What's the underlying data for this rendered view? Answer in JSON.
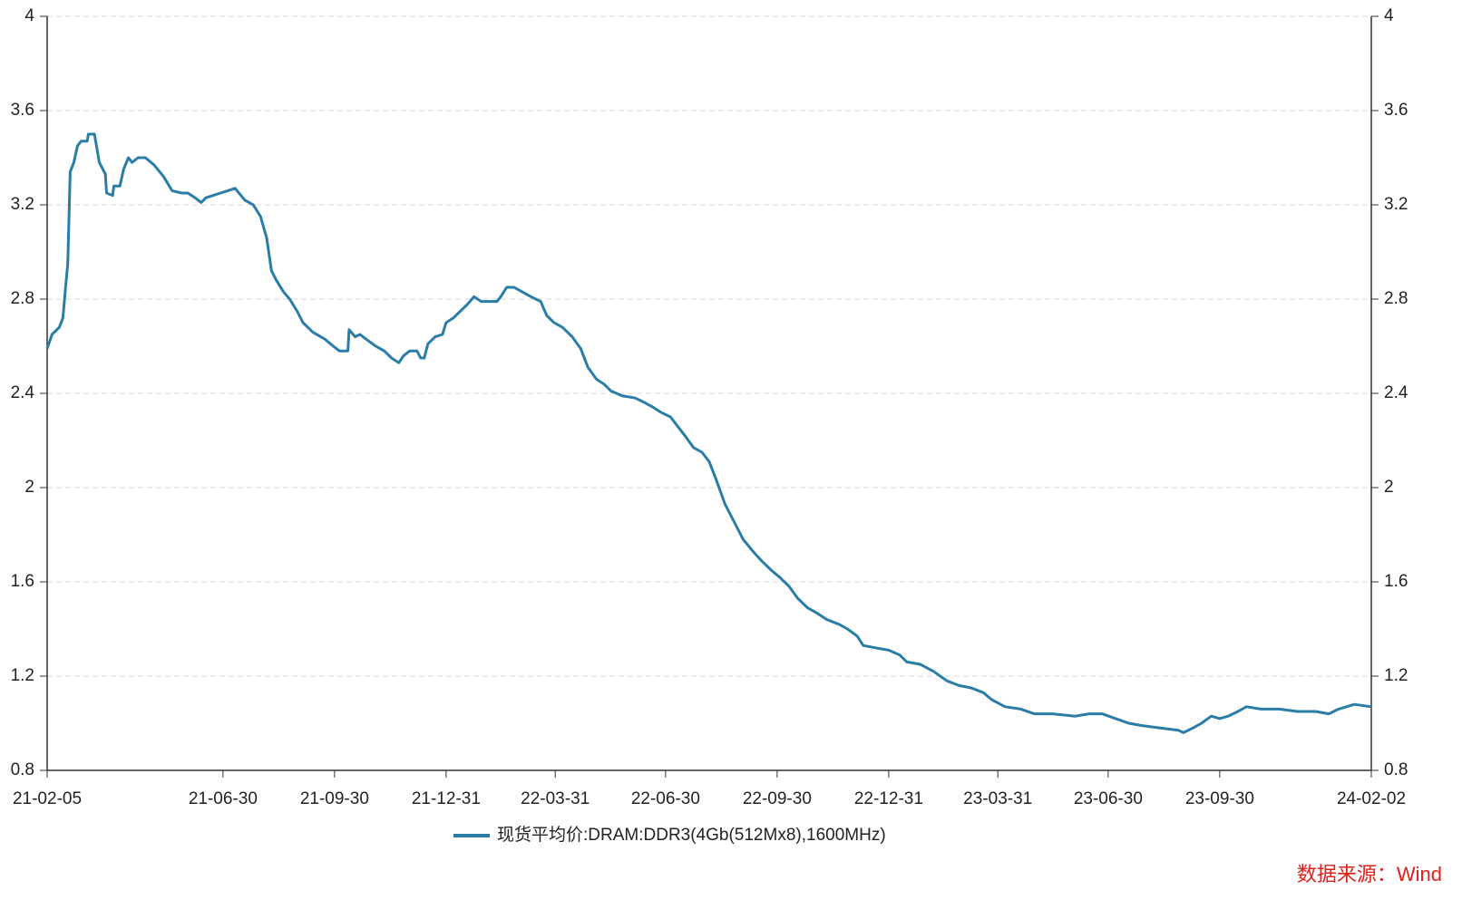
{
  "chart_data": {
    "type": "line",
    "x": [
      "21-02-05",
      "21-02-09",
      "21-02-15",
      "21-02-18",
      "21-02-20",
      "21-02-22",
      "21-02-24",
      "21-02-27",
      "21-03-02",
      "21-03-05",
      "21-03-10",
      "21-03-11",
      "21-03-16",
      "21-03-20",
      "21-03-25",
      "21-03-26",
      "21-03-31",
      "21-04-01",
      "21-04-06",
      "21-04-09",
      "21-04-13",
      "21-04-16",
      "21-04-21",
      "21-04-27",
      "21-05-04",
      "21-05-12",
      "21-05-19",
      "21-05-27",
      "21-06-01",
      "21-06-07",
      "21-06-12",
      "21-06-16",
      "21-06-22",
      "21-06-28",
      "21-07-04",
      "21-07-10",
      "21-07-18",
      "21-07-25",
      "21-07-31",
      "21-08-05",
      "21-08-09",
      "21-08-13",
      "21-08-19",
      "21-08-24",
      "21-08-30",
      "21-09-04",
      "21-09-12",
      "21-09-22",
      "21-09-29",
      "21-10-04",
      "21-10-11",
      "21-10-12",
      "21-10-17",
      "21-10-21",
      "21-10-26",
      "21-11-03",
      "21-11-10",
      "21-11-16",
      "21-11-22",
      "21-11-26",
      "21-12-01",
      "21-12-07",
      "21-12-10",
      "21-12-13",
      "21-12-16",
      "21-12-22",
      "21-12-28",
      "21-12-31",
      "22-01-06",
      "22-01-12",
      "22-01-18",
      "22-01-23",
      "22-01-29",
      "22-02-05",
      "22-02-11",
      "22-02-14",
      "22-02-19",
      "22-02-25",
      "22-03-04",
      "22-03-11",
      "22-03-19",
      "22-03-24",
      "22-03-30",
      "22-04-06",
      "22-04-14",
      "22-04-21",
      "22-04-27",
      "22-05-04",
      "22-05-10",
      "22-05-16",
      "22-05-25",
      "22-06-05",
      "22-06-13",
      "22-06-20",
      "22-06-26",
      "22-07-04",
      "22-07-10",
      "22-07-16",
      "22-07-23",
      "22-07-30",
      "22-08-05",
      "22-08-11",
      "22-08-18",
      "22-08-26",
      "22-09-02",
      "22-09-10",
      "22-09-17",
      "22-09-25",
      "22-10-02",
      "22-10-10",
      "22-10-17",
      "22-10-25",
      "22-11-01",
      "22-11-10",
      "22-11-20",
      "22-11-27",
      "22-12-05",
      "22-12-10",
      "22-12-20",
      "22-12-31",
      "23-01-09",
      "23-01-15",
      "23-01-26",
      "23-02-06",
      "23-02-17",
      "23-02-27",
      "23-03-09",
      "23-03-19",
      "23-03-26",
      "23-04-06",
      "23-04-19",
      "23-04-30",
      "23-05-15",
      "23-06-03",
      "23-06-14",
      "23-06-25",
      "23-07-06",
      "23-07-17",
      "23-07-28",
      "23-08-12",
      "23-08-27",
      "23-08-31",
      "23-09-08",
      "23-09-15",
      "23-09-23",
      "23-09-30",
      "23-10-07",
      "23-10-15",
      "23-10-22",
      "23-11-03",
      "23-11-18",
      "23-12-03",
      "23-12-18",
      "23-12-29",
      "24-01-06",
      "24-01-19",
      "24-02-02"
    ],
    "series": [
      {
        "name": "现货平均价:DRAM:DDR3(4Gb(512Mx8),1600MHz)",
        "color": "#2a7da6",
        "values": [
          2.59,
          2.65,
          2.68,
          2.72,
          2.84,
          2.95,
          3.34,
          3.38,
          3.45,
          3.47,
          3.47,
          3.5,
          3.5,
          3.38,
          3.33,
          3.25,
          3.24,
          3.28,
          3.28,
          3.35,
          3.4,
          3.38,
          3.4,
          3.4,
          3.37,
          3.32,
          3.26,
          3.25,
          3.25,
          3.23,
          3.21,
          3.23,
          3.24,
          3.25,
          3.26,
          3.27,
          3.22,
          3.2,
          3.15,
          3.06,
          2.92,
          2.88,
          2.83,
          2.8,
          2.75,
          2.7,
          2.66,
          2.63,
          2.6,
          2.58,
          2.58,
          2.67,
          2.64,
          2.65,
          2.63,
          2.6,
          2.58,
          2.55,
          2.53,
          2.56,
          2.58,
          2.58,
          2.55,
          2.55,
          2.61,
          2.64,
          2.65,
          2.7,
          2.72,
          2.75,
          2.78,
          2.81,
          2.79,
          2.79,
          2.79,
          2.81,
          2.85,
          2.85,
          2.83,
          2.81,
          2.79,
          2.73,
          2.7,
          2.68,
          2.64,
          2.59,
          2.51,
          2.46,
          2.44,
          2.41,
          2.39,
          2.38,
          2.36,
          2.34,
          2.32,
          2.3,
          2.26,
          2.22,
          2.17,
          2.15,
          2.11,
          2.03,
          1.93,
          1.85,
          1.78,
          1.73,
          1.69,
          1.65,
          1.62,
          1.58,
          1.53,
          1.49,
          1.47,
          1.44,
          1.42,
          1.4,
          1.37,
          1.33,
          1.32,
          1.31,
          1.29,
          1.26,
          1.25,
          1.22,
          1.18,
          1.16,
          1.15,
          1.13,
          1.1,
          1.07,
          1.06,
          1.04,
          1.04,
          1.03,
          1.04,
          1.04,
          1.02,
          1.0,
          0.99,
          0.98,
          0.97,
          0.96,
          0.98,
          1.0,
          1.03,
          1.02,
          1.03,
          1.05,
          1.07,
          1.06,
          1.06,
          1.05,
          1.05,
          1.04,
          1.06,
          1.08,
          1.07
        ]
      }
    ],
    "xlim": [
      "21-02-05",
      "24-02-02"
    ],
    "xticks": [
      "21-02-05",
      "21-06-30",
      "21-09-30",
      "21-12-31",
      "22-03-31",
      "22-06-30",
      "22-09-30",
      "22-12-31",
      "23-03-31",
      "23-06-30",
      "23-09-30",
      "24-02-02"
    ],
    "ylim": [
      0.8,
      4
    ],
    "yticks": [
      0.8,
      1.2,
      1.6,
      2,
      2.4,
      2.8,
      3.2,
      3.6,
      4
    ],
    "y2lim": [
      0.8,
      4
    ],
    "y2ticks": [
      0.8,
      1.2,
      1.6,
      2,
      2.4,
      2.8,
      3.2,
      3.6,
      4
    ],
    "grid": true,
    "legend": "bottom",
    "source": "数据来源：Wind"
  }
}
